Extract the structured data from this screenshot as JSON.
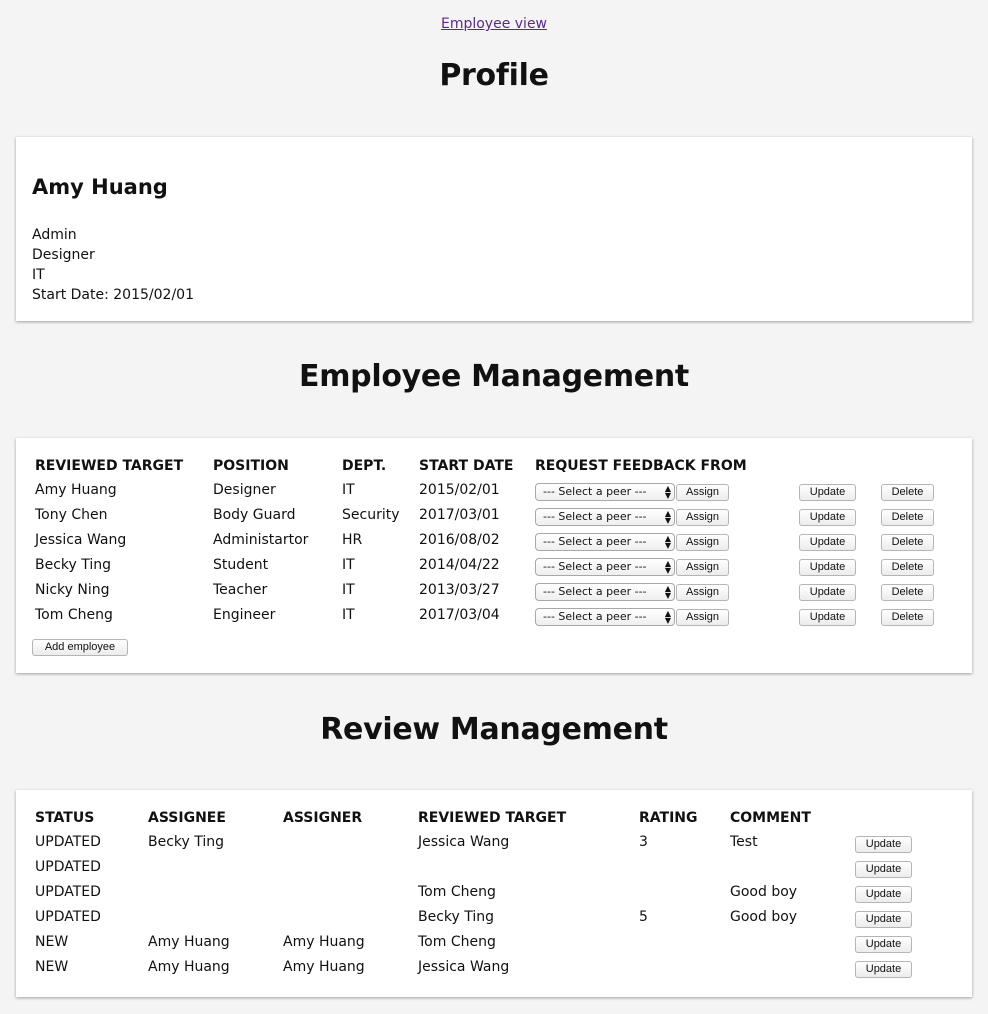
{
  "nav": {
    "employee_view": "Employee view"
  },
  "profile": {
    "heading": "Profile",
    "name": "Amy Huang",
    "role": "Admin",
    "position": "Designer",
    "department": "IT",
    "start_date": "Start Date: 2015/02/01"
  },
  "employee_management": {
    "heading": "Employee Management",
    "columns": [
      "REVIEWED TARGET",
      "POSITION",
      "DEPT.",
      "START DATE",
      "REQUEST FEEDBACK FROM"
    ],
    "select_placeholder": "--- Select a peer ---",
    "assign_label": "Assign",
    "update_label": "Update",
    "delete_label": "Delete",
    "add_label": "Add employee",
    "rows": [
      {
        "name": "Amy Huang",
        "position": "Designer",
        "dept": "IT",
        "start": "2015/02/01"
      },
      {
        "name": "Tony Chen",
        "position": "Body Guard",
        "dept": "Security",
        "start": "2017/03/01"
      },
      {
        "name": "Jessica Wang",
        "position": "Administartor",
        "dept": "HR",
        "start": "2016/08/02"
      },
      {
        "name": "Becky Ting",
        "position": "Student",
        "dept": "IT",
        "start": "2014/04/22"
      },
      {
        "name": "Nicky Ning",
        "position": "Teacher",
        "dept": "IT",
        "start": "2013/03/27"
      },
      {
        "name": "Tom Cheng",
        "position": "Engineer",
        "dept": "IT",
        "start": "2017/03/04"
      }
    ]
  },
  "review_management": {
    "heading": "Review Management",
    "columns": [
      "STATUS",
      "ASSIGNEE",
      "ASSIGNER",
      "REVIEWED TARGET",
      "RATING",
      "COMMENT"
    ],
    "update_label": "Update",
    "rows": [
      {
        "status": "UPDATED",
        "assignee": "Becky Ting",
        "assigner": "",
        "target": "Jessica Wang",
        "rating": "3",
        "comment": "Test"
      },
      {
        "status": "UPDATED",
        "assignee": "",
        "assigner": "",
        "target": "",
        "rating": "",
        "comment": ""
      },
      {
        "status": "UPDATED",
        "assignee": "",
        "assigner": "",
        "target": "Tom Cheng",
        "rating": "",
        "comment": "Good boy"
      },
      {
        "status": "UPDATED",
        "assignee": "",
        "assigner": "",
        "target": "Becky Ting",
        "rating": "5",
        "comment": "Good boy"
      },
      {
        "status": "NEW",
        "assignee": "Amy Huang",
        "assigner": "Amy Huang",
        "target": "Tom Cheng",
        "rating": "",
        "comment": ""
      },
      {
        "status": "NEW",
        "assignee": "Amy Huang",
        "assigner": "Amy Huang",
        "target": "Jessica Wang",
        "rating": "",
        "comment": ""
      }
    ]
  }
}
